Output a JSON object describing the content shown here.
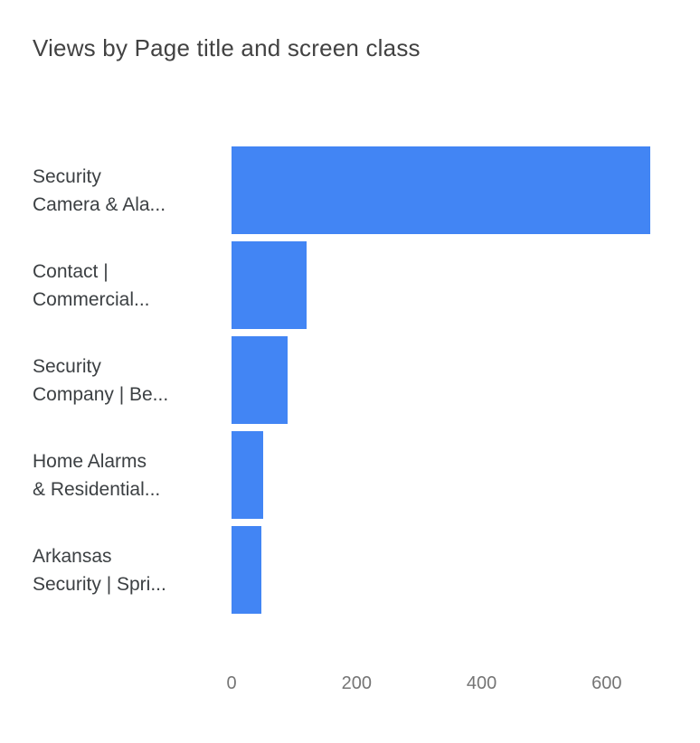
{
  "title": "Views by Page title and screen class",
  "colors": {
    "bar": "#4285f4",
    "title_text": "#424242",
    "label_text": "#3c4043",
    "tick_text": "#757575"
  },
  "chart_data": {
    "type": "bar",
    "orientation": "horizontal",
    "title": "Views by Page title and screen class",
    "categories": [
      "Security Camera & Ala...",
      "Contact | Commercial...",
      "Security Company | Be...",
      "Home Alarms & Residential...",
      "Arkansas Security | Spri..."
    ],
    "category_lines": [
      [
        "Security",
        "Camera & Ala..."
      ],
      [
        "Contact |",
        "Commercial..."
      ],
      [
        "Security",
        "Company | Be..."
      ],
      [
        "Home Alarms",
        "& Residential..."
      ],
      [
        "Arkansas",
        "Security | Spri..."
      ]
    ],
    "series": [
      {
        "name": "Views",
        "values": [
          670,
          120,
          90,
          50,
          48
        ]
      }
    ],
    "xlabel": "",
    "ylabel": "",
    "xlim": [
      0,
      700
    ],
    "xticks": [
      0,
      200,
      400,
      600
    ],
    "grid": false,
    "legend": false
  }
}
